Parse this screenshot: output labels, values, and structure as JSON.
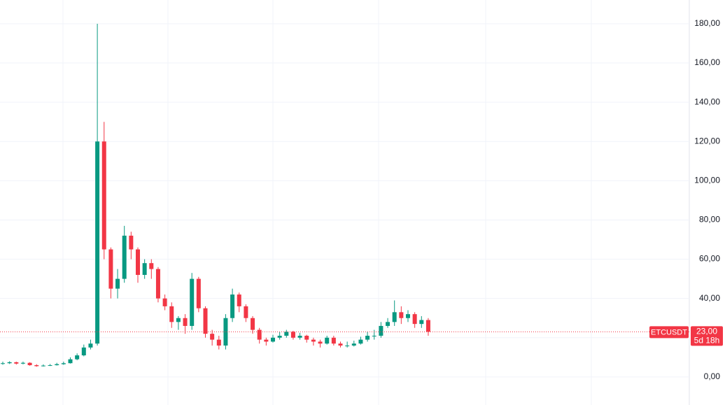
{
  "chart_data": {
    "type": "candlestick",
    "series": [
      {
        "up_color": "#089981",
        "down_color": "#f23645",
        "open": [
          6.8,
          7,
          7.5,
          6.8,
          7.2,
          6,
          5.5,
          5.8,
          6,
          6.5,
          7,
          9,
          11,
          15,
          17,
          120,
          65,
          45,
          50,
          72,
          65,
          52,
          58,
          55,
          40,
          36,
          28,
          30,
          26,
          50,
          35,
          22,
          19,
          16,
          30,
          42,
          36,
          30,
          24,
          19,
          18,
          20,
          21,
          23,
          20,
          21,
          19,
          18,
          17,
          20,
          17,
          16,
          16,
          17,
          19,
          21,
          21,
          26,
          28,
          33,
          30,
          32,
          27,
          29
        ],
        "high": [
          7.8,
          8,
          7.8,
          7.8,
          7.5,
          6.5,
          6.4,
          6.6,
          7.2,
          7.8,
          10,
          12,
          16.5,
          19,
          180,
          130,
          66,
          55,
          77,
          74,
          66,
          60,
          60,
          56,
          42,
          38,
          31,
          32,
          53,
          51,
          36,
          24,
          21,
          32,
          45,
          43,
          37,
          31,
          25,
          20,
          21.5,
          23,
          24,
          23.5,
          22.5,
          21.5,
          20,
          19,
          21,
          21,
          18,
          18,
          18.5,
          20.5,
          23,
          24,
          28,
          30,
          39,
          36,
          34,
          33,
          31,
          30
        ],
        "low": [
          6.2,
          6.6,
          6.3,
          6.4,
          5.7,
          5.2,
          5.3,
          5.6,
          5.8,
          6.2,
          6.8,
          8.5,
          10.5,
          14,
          16,
          60,
          40,
          40,
          48,
          60,
          48,
          50,
          50,
          38,
          34,
          25,
          24,
          22,
          24,
          33,
          20,
          16,
          14,
          14,
          28,
          33,
          28,
          22,
          17,
          16,
          17.5,
          19,
          20,
          19,
          19,
          17.5,
          16,
          15,
          16.5,
          16,
          15,
          15,
          15.5,
          16.5,
          18,
          19,
          20,
          25,
          26,
          27,
          28,
          25,
          25,
          21
        ],
        "close": [
          7,
          7.5,
          6.8,
          7.2,
          6,
          5.5,
          5.8,
          6,
          6.5,
          7,
          9,
          11,
          15,
          17,
          120,
          65,
          45,
          50,
          72,
          65,
          52,
          58,
          55,
          40,
          36,
          28,
          30,
          26,
          50,
          35,
          22,
          19,
          16,
          30,
          42,
          36,
          30,
          24,
          19,
          18,
          20,
          21,
          23,
          20,
          21,
          19,
          18,
          17,
          20,
          17,
          16,
          16,
          17,
          19,
          21,
          21,
          26,
          28,
          33,
          30,
          32,
          27,
          29,
          23
        ]
      }
    ],
    "ylim": [
      -14.3,
      192.1
    ],
    "yticks": [
      {
        "value": 0,
        "label": "0,00"
      },
      {
        "value": 20,
        "label": "20,00"
      },
      {
        "value": 40,
        "label": "40,00"
      },
      {
        "value": 60,
        "label": "60,00"
      },
      {
        "value": 80,
        "label": "80,00"
      },
      {
        "value": 100,
        "label": "100,00"
      },
      {
        "value": 120,
        "label": "120,00"
      },
      {
        "value": 140,
        "label": "140,00"
      },
      {
        "value": 160,
        "label": "160,00"
      },
      {
        "value": 180,
        "label": "180,00"
      }
    ],
    "grid": true,
    "price_line": {
      "symbol": "ETCUSDT",
      "value": 23,
      "value_label": "23,00",
      "countdown": "5d 18h",
      "color": "#f23645"
    }
  }
}
